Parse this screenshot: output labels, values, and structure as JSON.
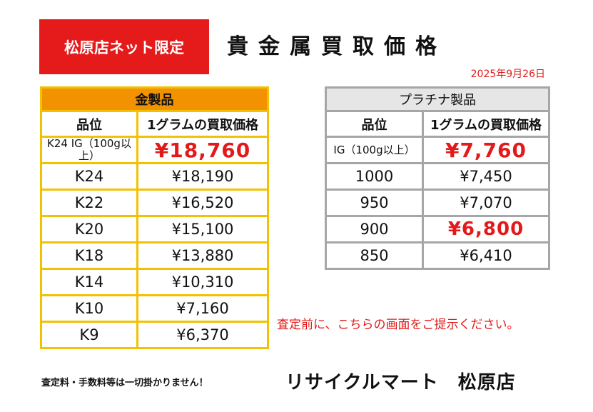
{
  "header": {
    "badge": "松原店ネット限定",
    "title": "貴金属買取価格",
    "date": "2025年9月26日"
  },
  "gold": {
    "title": "金製品",
    "col_grade": "品位",
    "col_price": "1グラムの買取価格",
    "rows": [
      {
        "grade": "K24 IG（100g以上）",
        "price": "¥18,760"
      },
      {
        "grade": "K24",
        "price": "¥18,190"
      },
      {
        "grade": "K22",
        "price": "¥16,520"
      },
      {
        "grade": "K20",
        "price": "¥15,100"
      },
      {
        "grade": "K18",
        "price": "¥13,880"
      },
      {
        "grade": "K14",
        "price": "¥10,310"
      },
      {
        "grade": "K10",
        "price": "¥7,160"
      },
      {
        "grade": "K9",
        "price": "¥6,370"
      }
    ]
  },
  "platinum": {
    "title": "プラチナ製品",
    "col_grade": "品位",
    "col_price": "1グラムの買取価格",
    "rows": [
      {
        "grade": "IG（100g以上）",
        "price": "¥7,760"
      },
      {
        "grade": "1000",
        "price": "¥7,450"
      },
      {
        "grade": "950",
        "price": "¥7,070"
      },
      {
        "grade": "900",
        "price": "¥6,800"
      },
      {
        "grade": "850",
        "price": "¥6,410"
      }
    ]
  },
  "notice": "査定前に、こちらの画面をご提示ください。",
  "footer": {
    "fees": "査定料・手数料等は一切掛かりません！",
    "store": "リサイクルマート　松原店"
  },
  "colors": {
    "accent_red": "#e21a1a",
    "gold_header": "#f39200",
    "gold_border": "#f2c200",
    "platinum_header": "#e7e6e6",
    "platinum_border": "#a6a6a6"
  }
}
